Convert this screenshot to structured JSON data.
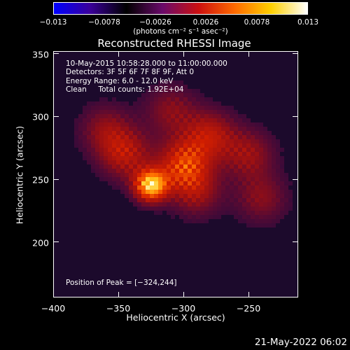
{
  "colorbar": {
    "ticks": [
      "−0.013",
      "−0.0078",
      "−0.0026",
      "0.0026",
      "0.0078",
      "0.013"
    ],
    "units": "(photons cm⁻² s⁻¹ asec⁻²)",
    "colors": [
      "#0000ff",
      "#3a0099",
      "#000000",
      "#6a0a6a",
      "#cc1010",
      "#ff6a00",
      "#ffd000",
      "#ffffff"
    ]
  },
  "chart_data": {
    "type": "heatmap",
    "title": "Reconstructed RHESSI Image",
    "xlabel": "Heliocentric X (arcsec)",
    "ylabel": "Heliocentric Y (arcsec)",
    "xlim": [
      -400,
      -212
    ],
    "ylim": [
      156,
      352
    ],
    "xticks": [
      "−400",
      "−350",
      "−300",
      "−250"
    ],
    "xtick_values": [
      -400,
      -350,
      -300,
      -250
    ],
    "yticks": [
      "350",
      "300",
      "250",
      "200"
    ],
    "ytick_values": [
      350,
      300,
      250,
      200
    ],
    "peak": {
      "x": -324,
      "y": 244
    },
    "sources": [
      {
        "x": -325,
        "y": 245,
        "intensity": 1.0
      },
      {
        "x": -300,
        "y": 262,
        "intensity": 0.6
      },
      {
        "x": -345,
        "y": 270,
        "intensity": 0.45
      },
      {
        "x": -280,
        "y": 285,
        "intensity": 0.45
      },
      {
        "x": -250,
        "y": 270,
        "intensity": 0.35
      },
      {
        "x": -240,
        "y": 235,
        "intensity": 0.3
      },
      {
        "x": -290,
        "y": 240,
        "intensity": 0.35
      },
      {
        "x": -360,
        "y": 290,
        "intensity": 0.3
      },
      {
        "x": -310,
        "y": 305,
        "intensity": 0.3
      }
    ]
  },
  "info": {
    "line1": "10-May-2015 10:58:28.000 to 11:00:00.000",
    "line2": "Detectors: 3F 5F 6F 7F 8F 9F, Att 0",
    "line3": "Energy Range: 6.0 - 12.0 keV",
    "line4": "Clean     Total counts: 1.92E+04",
    "peak_text": "Position of Peak = [−324,244]"
  },
  "footer": {
    "timestamp": "21-May-2022 06:02"
  }
}
